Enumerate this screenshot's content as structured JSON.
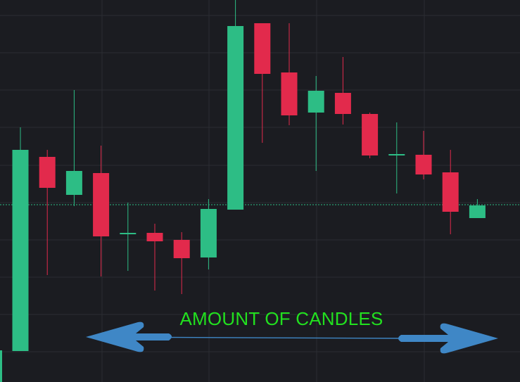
{
  "chart_data": {
    "type": "candlestick",
    "title": "",
    "xlabel": "",
    "ylabel": "",
    "grid": true,
    "current_price_line": true,
    "annotation": "AMOUNT OF CANDLES",
    "colors": {
      "background": "#1b1c21",
      "grid": "#2b2d33",
      "up": "#2dbd85",
      "down": "#e22a4c",
      "price_line": "#2dbd85",
      "arrow": "#3f87c6",
      "annotation_text": "#22e01f"
    },
    "ylim": [
      0,
      543
    ],
    "candles": [
      {
        "open": 44,
        "high": 362,
        "low": 44,
        "close": 330
      },
      {
        "open": 320,
        "high": 330,
        "low": 152,
        "close": 276
      },
      {
        "open": 266,
        "high": 415,
        "low": 250,
        "close": 300
      },
      {
        "open": 297,
        "high": 336,
        "low": 150,
        "close": 207
      },
      {
        "open": 212,
        "high": 255,
        "low": 158,
        "close": 212
      },
      {
        "open": 212,
        "high": 225,
        "low": 130,
        "close": 200
      },
      {
        "open": 202,
        "high": 213,
        "low": 125,
        "close": 176
      },
      {
        "open": 177,
        "high": 260,
        "low": 160,
        "close": 246
      },
      {
        "open": 245,
        "high": 543,
        "low": 245,
        "close": 506
      },
      {
        "open": 510,
        "high": 510,
        "low": 340,
        "close": 438
      },
      {
        "open": 440,
        "high": 510,
        "low": 365,
        "close": 379
      },
      {
        "open": 383,
        "high": 435,
        "low": 300,
        "close": 414
      },
      {
        "open": 411,
        "high": 462,
        "low": 366,
        "close": 381
      },
      {
        "open": 381,
        "high": 383,
        "low": 318,
        "close": 322
      },
      {
        "open": 323,
        "high": 369,
        "low": 268,
        "close": 324
      },
      {
        "open": 323,
        "high": 357,
        "low": 288,
        "close": 295
      },
      {
        "open": 298,
        "high": 330,
        "low": 210,
        "close": 242
      },
      {
        "open": 233,
        "high": 260,
        "low": 233,
        "close": 251
      }
    ],
    "current_price": 252
  }
}
